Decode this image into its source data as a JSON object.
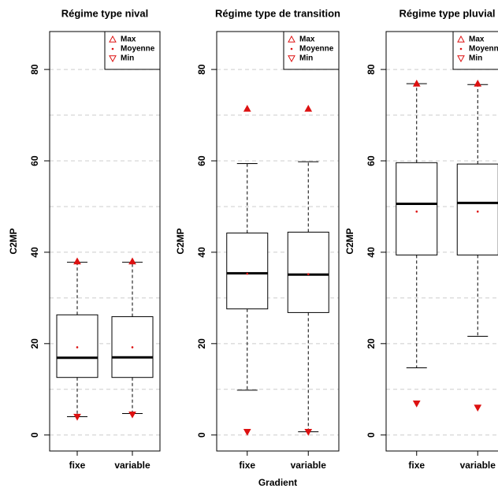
{
  "chart_data": [
    {
      "type": "box",
      "title": "Régime type nival",
      "ylabel": "C2MP",
      "categories": [
        "fixe",
        "variable"
      ],
      "ylim": [
        -3.5,
        88.3
      ],
      "yticks": [
        0,
        20,
        40,
        60,
        80
      ],
      "ygrid": [
        0,
        10,
        20,
        30,
        40,
        50,
        60,
        70,
        80
      ],
      "boxes": {
        "whisker_low": [
          4.0,
          4.7
        ],
        "q1": [
          12.6,
          12.6
        ],
        "median": [
          16.9,
          17.0
        ],
        "q3": [
          26.3,
          25.9
        ],
        "whisker_high": [
          37.8,
          37.8
        ]
      },
      "series": [
        {
          "name": "Max",
          "color": "#dd1111",
          "marker": "triangle-up",
          "values": [
            38.0,
            38.0
          ]
        },
        {
          "name": "Moyenne",
          "color": "#dd1111",
          "marker": "dot",
          "values": [
            19.2,
            19.2
          ]
        },
        {
          "name": "Min",
          "color": "#dd1111",
          "marker": "triangle-down",
          "values": [
            4.0,
            4.5
          ]
        }
      ]
    },
    {
      "type": "box",
      "title": "Régime type de transition",
      "ylabel": "C2MP",
      "xlabel": "Gradient",
      "categories": [
        "fixe",
        "variable"
      ],
      "ylim": [
        -3.5,
        88.3
      ],
      "yticks": [
        0,
        20,
        40,
        60,
        80
      ],
      "ygrid": [
        0,
        10,
        20,
        30,
        40,
        50,
        60,
        70,
        80
      ],
      "boxes": {
        "whisker_low": [
          9.8,
          0.7
        ],
        "q1": [
          27.6,
          26.8
        ],
        "median": [
          35.4,
          35.1
        ],
        "q3": [
          44.2,
          44.4
        ],
        "whisker_high": [
          59.4,
          59.8
        ]
      },
      "series": [
        {
          "name": "Max",
          "color": "#dd1111",
          "marker": "triangle-up",
          "values": [
            71.4,
            71.4
          ]
        },
        {
          "name": "Moyenne",
          "color": "#dd1111",
          "marker": "dot",
          "values": [
            35.3,
            35.2
          ]
        },
        {
          "name": "Min",
          "color": "#dd1111",
          "marker": "triangle-down",
          "values": [
            0.7,
            0.7
          ]
        }
      ]
    },
    {
      "type": "box",
      "title": "Régime type pluvial",
      "ylabel": "C2MP",
      "categories": [
        "fixe",
        "variable"
      ],
      "ylim": [
        -3.5,
        88.3
      ],
      "yticks": [
        0,
        20,
        40,
        60,
        80
      ],
      "ygrid": [
        0,
        10,
        20,
        30,
        40,
        50,
        60,
        70,
        80
      ],
      "boxes": {
        "whisker_low": [
          14.7,
          21.6
        ],
        "q1": [
          39.4,
          39.4
        ],
        "median": [
          50.6,
          50.8
        ],
        "q3": [
          59.6,
          59.3
        ],
        "whisker_high": [
          76.9,
          76.7
        ]
      },
      "series": [
        {
          "name": "Max",
          "color": "#dd1111",
          "marker": "triangle-up",
          "values": [
            76.9,
            76.9
          ]
        },
        {
          "name": "Moyenne",
          "color": "#dd1111",
          "marker": "dot",
          "values": [
            48.9,
            48.9
          ]
        },
        {
          "name": "Min",
          "color": "#dd1111",
          "marker": "triangle-down",
          "values": [
            6.9,
            6.0
          ]
        }
      ]
    }
  ]
}
